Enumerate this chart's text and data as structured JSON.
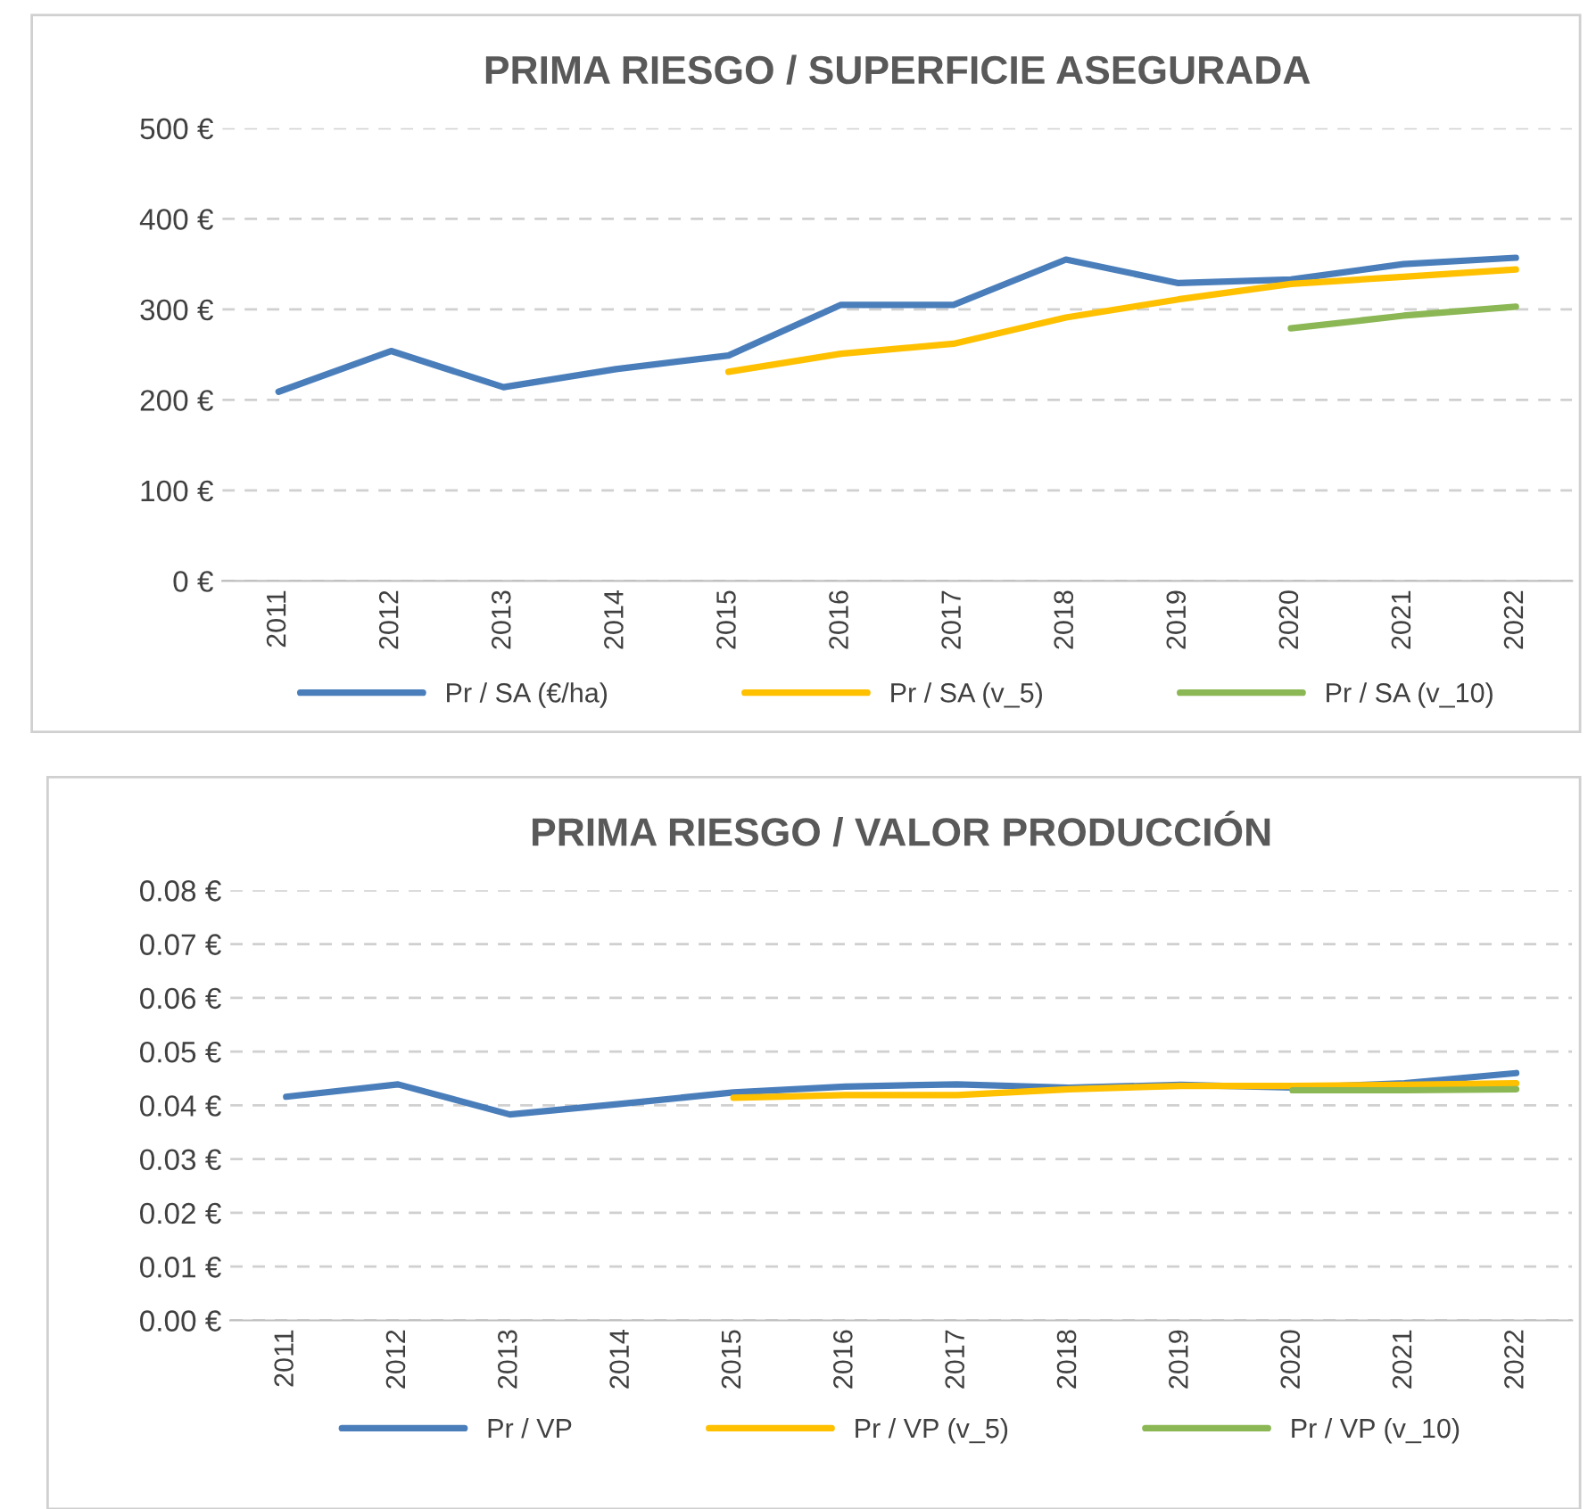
{
  "chart_data": [
    {
      "type": "line",
      "title": "PRIMA RIESGO / SUPERFICIE ASEGURADA",
      "categories": [
        "2011",
        "2012",
        "2013",
        "2014",
        "2015",
        "2016",
        "2017",
        "2018",
        "2019",
        "2020",
        "2021",
        "2022"
      ],
      "series": [
        {
          "name": "Pr / SA (€/ha)",
          "color": "#4a7ebb",
          "values": [
            209,
            254,
            214,
            234,
            249,
            305,
            305,
            355,
            329,
            333,
            350,
            357
          ]
        },
        {
          "name": "Pr / SA (v_5)",
          "color": "#ffc000",
          "values": [
            null,
            null,
            null,
            null,
            231,
            251,
            262,
            291,
            311,
            328,
            336,
            344
          ]
        },
        {
          "name": "Pr / SA (v_10)",
          "color": "#8cb755",
          "values": [
            null,
            null,
            null,
            null,
            null,
            null,
            null,
            null,
            null,
            279,
            293,
            303
          ]
        }
      ],
      "ylim": [
        0,
        500
      ],
      "yticks": [
        {
          "value": 0,
          "label": "0 €"
        },
        {
          "value": 100,
          "label": "100 €"
        },
        {
          "value": 200,
          "label": "200 €"
        },
        {
          "value": 300,
          "label": "300 €"
        },
        {
          "value": 400,
          "label": "400 €"
        },
        {
          "value": 500,
          "label": "500 €"
        }
      ],
      "grid": "y",
      "legend": "bottom",
      "marker": "none",
      "line_style": "solid"
    },
    {
      "type": "line",
      "title": "PRIMA RIESGO / VALOR PRODUCCIÓN",
      "categories": [
        "2011",
        "2012",
        "2013",
        "2014",
        "2015",
        "2016",
        "2017",
        "2018",
        "2019",
        "2020",
        "2021",
        "2022"
      ],
      "series": [
        {
          "name": "Pr / VP",
          "color": "#4a7ebb",
          "values": [
            0.0416,
            0.0439,
            0.0383,
            0.0403,
            0.0424,
            0.0435,
            0.0439,
            0.0433,
            0.0438,
            0.0433,
            0.0441,
            0.046
          ]
        },
        {
          "name": "Pr / VP (v_5)",
          "color": "#ffc000",
          "values": [
            null,
            null,
            null,
            null,
            0.0414,
            0.0419,
            0.0419,
            0.043,
            0.0436,
            0.0436,
            0.0438,
            0.0441
          ]
        },
        {
          "name": "Pr / VP (v_10)",
          "color": "#8cb755",
          "values": [
            null,
            null,
            null,
            null,
            null,
            null,
            null,
            null,
            null,
            0.0428,
            0.0428,
            0.043
          ]
        }
      ],
      "ylim": [
        0,
        0.08
      ],
      "yticks": [
        {
          "value": 0,
          "label": "0.00 €"
        },
        {
          "value": 0.01,
          "label": "0.01 €"
        },
        {
          "value": 0.02,
          "label": "0.02 €"
        },
        {
          "value": 0.03,
          "label": "0.03 €"
        },
        {
          "value": 0.04,
          "label": "0.04 €"
        },
        {
          "value": 0.05,
          "label": "0.05 €"
        },
        {
          "value": 0.06,
          "label": "0.06 €"
        },
        {
          "value": 0.07,
          "label": "0.07 €"
        },
        {
          "value": 0.08,
          "label": "0.08 €"
        }
      ],
      "grid": "y",
      "legend": "bottom",
      "marker": "none",
      "line_style": "solid"
    }
  ]
}
